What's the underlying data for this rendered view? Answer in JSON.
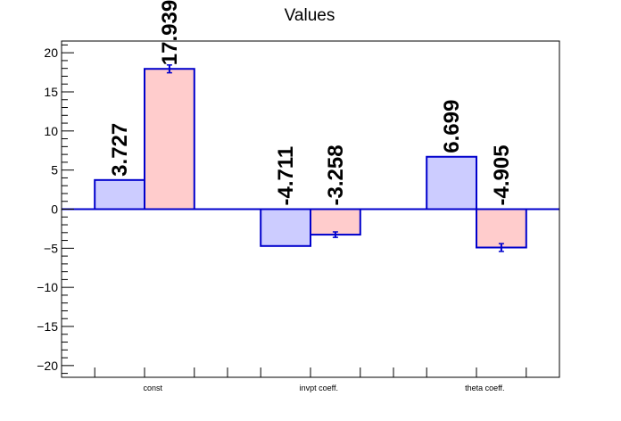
{
  "chart_data": {
    "type": "bar",
    "title": "Values",
    "categories": [
      "const",
      "invpt coeff.",
      "theta coeff."
    ],
    "ylim": [
      -21.5,
      21.5
    ],
    "yticks": [
      20,
      15,
      10,
      5,
      0,
      -5,
      -10,
      -15,
      -20
    ],
    "ytick_labels": [
      "20",
      "15",
      "10",
      "5",
      "0",
      "−5",
      "−10",
      "−15",
      "−20"
    ],
    "grid": false,
    "series": [
      {
        "color_fill": "#ccccff",
        "color_line": "#0000cc",
        "values": [
          3.727,
          -4.711,
          6.699
        ],
        "labels": [
          "3.727",
          "-4.711",
          "6.699"
        ]
      },
      {
        "color_fill": "#ffcccc",
        "color_line": "#0000cc",
        "values": [
          17.939,
          -3.258,
          -4.905
        ],
        "errors": [
          0.5,
          0.35,
          0.5
        ],
        "labels": [
          "17.939",
          "-3.258",
          "-4.905"
        ]
      }
    ]
  }
}
